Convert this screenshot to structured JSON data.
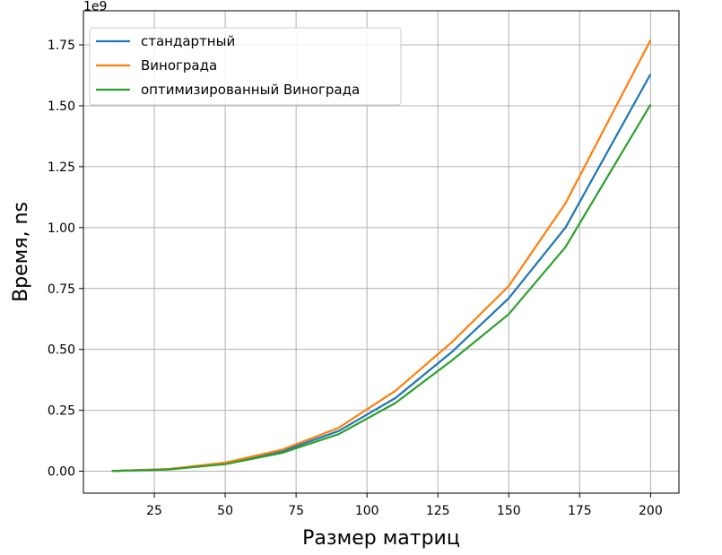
{
  "chart_data": {
    "type": "line",
    "xlabel": "Размер матриц",
    "ylabel": "Время, ns",
    "y_offset_label": "1e9",
    "xlim": [
      0,
      210
    ],
    "ylim": [
      -0.09,
      1.89
    ],
    "x_ticks": [
      25,
      50,
      75,
      100,
      125,
      150,
      175,
      200
    ],
    "x_tick_labels": [
      "25",
      "50",
      "75",
      "100",
      "125",
      "150",
      "175",
      "200"
    ],
    "y_ticks": [
      0,
      0.25,
      0.5,
      0.75,
      1.0,
      1.25,
      1.5,
      1.75
    ],
    "y_tick_labels": [
      "0.00",
      "0.25",
      "0.50",
      "0.75",
      "1.00",
      "1.25",
      "1.50",
      "1.75"
    ],
    "grid": true,
    "legend_position": "top-left",
    "x": [
      10,
      30,
      50,
      70,
      90,
      110,
      130,
      150,
      170,
      200
    ],
    "series": [
      {
        "name": "стандартный",
        "color": "#1f77b4",
        "values": [
          0.001,
          0.008,
          0.032,
          0.082,
          0.165,
          0.3,
          0.49,
          0.71,
          1.0,
          1.63
        ]
      },
      {
        "name": "Винограда",
        "color": "#ff7f0e",
        "values": [
          0.001,
          0.009,
          0.035,
          0.088,
          0.178,
          0.33,
          0.53,
          0.76,
          1.1,
          1.77
        ]
      },
      {
        "name": "оптимизированный Винограда",
        "color": "#2ca02c",
        "values": [
          0.001,
          0.007,
          0.029,
          0.075,
          0.152,
          0.28,
          0.455,
          0.645,
          0.92,
          1.505
        ]
      }
    ]
  }
}
